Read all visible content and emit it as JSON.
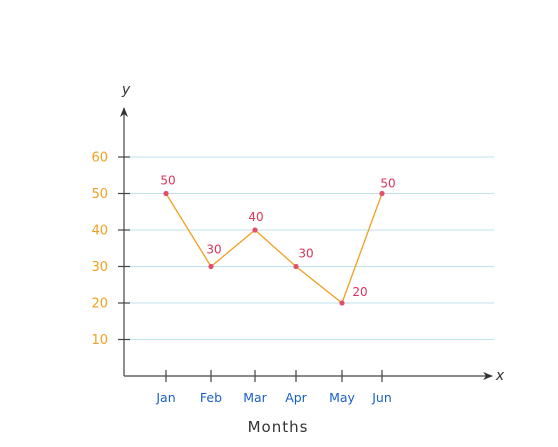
{
  "chart_data": {
    "type": "line",
    "title": "",
    "xlabel": "Months",
    "ylabel": "",
    "x_axis_symbol": "x",
    "y_axis_symbol": "y",
    "categories": [
      "Jan",
      "Feb",
      "Mar",
      "Apr",
      "May",
      "Jun"
    ],
    "series": [
      {
        "values": [
          50,
          30,
          40,
          30,
          20,
          50
        ]
      }
    ],
    "data_labels": [
      "50",
      "30",
      "40",
      "30",
      "20",
      "50"
    ],
    "yticks": [
      10,
      20,
      30,
      40,
      50,
      60
    ],
    "ytick_labels": [
      "10",
      "20",
      "30",
      "40",
      "50",
      "60"
    ],
    "ylim": [
      0,
      60
    ],
    "grid": true,
    "legend": "none",
    "colors": {
      "line": "#f0a020",
      "points": "#e0506a",
      "data_labels": "#d8365a",
      "y_ticks": "#f0a020",
      "x_ticks": "#1a5fc8",
      "grid": "#bfe3ee"
    }
  }
}
